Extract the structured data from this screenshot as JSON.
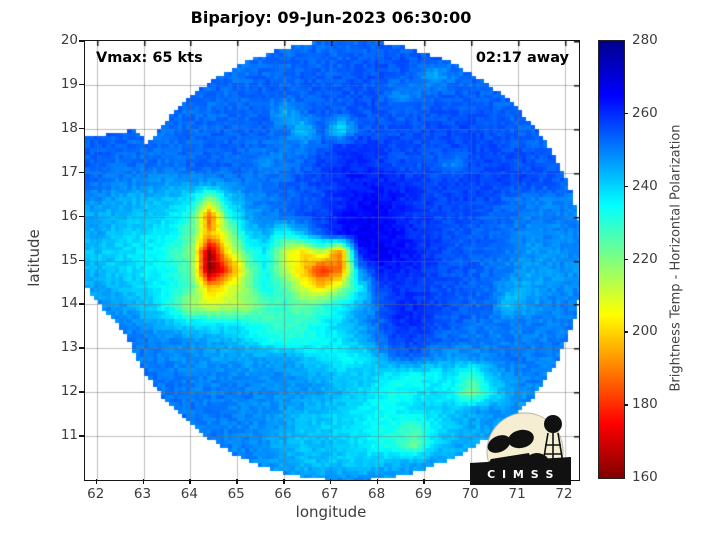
{
  "title": "Biparjoy: 09-Jun-2023 06:30:00",
  "annotations": {
    "vmax": "Vmax: 65 kts",
    "eta": "02:17 away"
  },
  "axes": {
    "xlabel": "longitude",
    "ylabel": "latitude",
    "x_ticks": [
      62,
      63,
      64,
      65,
      66,
      67,
      68,
      69,
      70,
      71,
      72
    ],
    "y_ticks": [
      20,
      19,
      18,
      17,
      16,
      15,
      14,
      13,
      12,
      11
    ]
  },
  "colorbar": {
    "label": "Brightness Temp - Horizontal Polarization",
    "ticks": [
      280,
      260,
      240,
      220,
      200,
      180,
      160
    ],
    "min": 160,
    "max": 280,
    "colormap": "jet reversed (280=dark blue, 160=dark red)",
    "stops": [
      {
        "v": 280,
        "c": "#00008f"
      },
      {
        "v": 265,
        "c": "#0000ff"
      },
      {
        "v": 235,
        "c": "#00ffff"
      },
      {
        "v": 205,
        "c": "#ffff00"
      },
      {
        "v": 175,
        "c": "#ff0000"
      },
      {
        "v": 160,
        "c": "#800000"
      }
    ]
  },
  "logo": {
    "text": "C I M S S"
  },
  "chart_data": {
    "type": "heatmap",
    "title": "Biparjoy: 09-Jun-2023 06:30:00",
    "xlabel": "longitude",
    "ylabel": "latitude",
    "xlim": [
      61.75,
      72.3
    ],
    "ylim": [
      10.07,
      20.0
    ],
    "grid": true,
    "colorbar_label": "Brightness Temp - Horizontal Polarization",
    "value_range": [
      160,
      280
    ],
    "swath": {
      "circle": {
        "cx": 67.35,
        "cy": 15.0,
        "r": 5.02
      },
      "west_bulge_polygon": [
        [
          61.75,
          17.8
        ],
        [
          61.75,
          14.4
        ],
        [
          62.9,
          12.95
        ],
        [
          63.6,
          12.75
        ],
        [
          64.8,
          13.6
        ],
        [
          63.8,
          16.8
        ],
        [
          62.8,
          18.0
        ]
      ]
    },
    "lons": [
      62,
      62.4,
      62.8,
      63.2,
      63.6,
      64,
      64.4,
      64.8,
      65.2,
      65.6,
      66,
      66.4,
      66.8,
      67.2,
      67.6,
      68,
      68.4,
      68.8,
      69.2,
      69.6,
      70,
      70.4,
      70.8,
      71.2,
      71.6,
      72
    ],
    "lats": [
      20,
      19.6,
      19.2,
      18.8,
      18.4,
      18,
      17.6,
      17.2,
      16.8,
      16.4,
      16,
      15.6,
      15.2,
      14.8,
      14.4,
      14,
      13.6,
      13.2,
      12.8,
      12.4,
      12,
      11.6,
      11.2,
      10.8,
      10.4,
      10
    ],
    "values": [
      [
        253,
        253,
        253,
        253,
        253,
        253,
        253,
        253,
        253,
        253,
        252,
        252,
        252,
        252,
        252,
        253,
        253,
        253,
        253,
        253,
        253,
        253,
        253,
        253,
        253,
        253
      ],
      [
        253,
        253,
        253,
        253,
        253,
        253,
        253,
        252,
        251,
        252,
        252,
        253,
        253,
        253,
        254,
        255,
        255,
        254,
        254,
        253,
        253,
        253,
        253,
        253,
        253,
        253
      ],
      [
        253,
        253,
        253,
        253,
        253,
        252,
        252,
        252,
        252,
        253,
        253,
        253,
        254,
        254,
        255,
        255,
        254,
        253,
        244,
        250,
        253,
        253,
        253,
        253,
        253,
        253
      ],
      [
        253,
        253,
        253,
        253,
        252,
        252,
        252,
        252,
        253,
        253,
        253,
        253,
        254,
        254,
        255,
        255,
        247,
        250,
        254,
        254,
        254,
        253,
        253,
        253,
        253,
        253
      ],
      [
        254,
        254,
        254,
        253,
        252,
        252,
        252,
        252,
        253,
        253,
        244,
        252,
        254,
        254,
        255,
        255,
        254,
        254,
        255,
        255,
        255,
        254,
        253,
        253,
        253,
        253
      ],
      [
        254,
        254,
        253,
        252,
        252,
        252,
        253,
        253,
        253,
        253,
        252,
        240,
        253,
        237,
        254,
        255,
        255,
        255,
        256,
        256,
        256,
        255,
        254,
        253,
        253,
        253
      ],
      [
        254,
        253,
        252,
        252,
        252,
        252,
        253,
        253,
        253,
        252,
        250,
        250,
        254,
        258,
        260,
        258,
        256,
        256,
        256,
        256,
        256,
        256,
        255,
        254,
        253,
        253
      ],
      [
        254,
        252,
        252,
        252,
        252,
        253,
        253,
        253,
        252,
        249,
        250,
        253,
        258,
        260,
        260,
        258,
        256,
        255,
        255,
        248,
        256,
        256,
        256,
        256,
        254,
        253
      ],
      [
        252,
        250,
        249,
        248,
        247,
        248,
        248,
        250,
        251,
        252,
        253,
        255,
        257,
        260,
        262,
        262,
        260,
        258,
        256,
        257,
        257,
        257,
        257,
        256,
        255,
        254
      ],
      [
        248,
        246,
        244,
        243,
        242,
        238,
        218,
        240,
        248,
        250,
        252,
        254,
        256,
        260,
        263,
        264,
        262,
        259,
        257,
        257,
        257,
        256,
        252,
        250,
        250,
        250
      ],
      [
        245,
        244,
        243,
        242,
        238,
        230,
        185,
        230,
        245,
        250,
        252,
        255,
        258,
        262,
        265,
        266,
        262,
        259,
        257,
        256,
        255,
        254,
        252,
        250,
        250,
        250
      ],
      [
        245,
        242,
        240,
        238,
        235,
        225,
        195,
        215,
        238,
        244,
        232,
        242,
        254,
        264,
        266,
        266,
        263,
        260,
        257,
        255,
        254,
        253,
        251,
        249,
        249,
        249
      ],
      [
        242,
        240,
        238,
        236,
        230,
        222,
        162,
        205,
        228,
        238,
        212,
        200,
        215,
        190,
        262,
        267,
        264,
        261,
        258,
        255,
        254,
        252,
        250,
        247,
        248,
        248
      ],
      [
        243,
        241,
        239,
        236,
        232,
        225,
        158,
        182,
        218,
        236,
        215,
        198,
        178,
        188,
        248,
        262,
        262,
        260,
        257,
        255,
        254,
        252,
        250,
        246,
        247,
        248
      ],
      [
        246,
        244,
        241,
        238,
        234,
        228,
        195,
        208,
        220,
        235,
        226,
        210,
        200,
        215,
        235,
        255,
        259,
        258,
        256,
        255,
        254,
        252,
        246,
        244,
        248,
        248
      ],
      [
        248,
        247,
        244,
        240,
        230,
        215,
        210,
        212,
        216,
        225,
        230,
        222,
        228,
        235,
        244,
        252,
        260,
        260,
        257,
        255,
        253,
        252,
        240,
        246,
        248,
        250
      ],
      [
        250,
        248,
        248,
        245,
        242,
        238,
        236,
        237,
        233,
        230,
        228,
        230,
        235,
        240,
        246,
        252,
        260,
        260,
        256,
        254,
        252,
        251,
        250,
        250,
        250,
        250
      ],
      [
        252,
        251,
        251,
        250,
        249,
        248,
        246,
        244,
        240,
        234,
        230,
        232,
        234,
        238,
        244,
        250,
        257,
        257,
        254,
        252,
        251,
        250,
        250,
        250,
        250,
        250
      ],
      [
        252,
        252,
        251,
        250,
        249,
        248,
        247,
        246,
        246,
        246,
        246,
        243,
        238,
        234,
        236,
        244,
        252,
        254,
        248,
        246,
        248,
        250,
        251,
        250,
        250,
        250
      ],
      [
        252,
        252,
        252,
        251,
        250,
        250,
        249,
        249,
        248,
        248,
        248,
        246,
        244,
        242,
        242,
        240,
        236,
        234,
        236,
        238,
        228,
        242,
        248,
        250,
        250,
        250
      ],
      [
        252,
        252,
        252,
        252,
        251,
        251,
        250,
        250,
        250,
        249,
        248,
        248,
        246,
        244,
        240,
        236,
        233,
        236,
        238,
        234,
        220,
        235,
        245,
        248,
        250,
        250
      ],
      [
        250,
        250,
        250,
        251,
        251,
        251,
        250,
        250,
        249,
        248,
        246,
        244,
        242,
        240,
        238,
        234,
        236,
        238,
        240,
        242,
        246,
        248,
        248,
        248,
        248,
        248
      ],
      [
        250,
        250,
        250,
        250,
        250,
        251,
        250,
        250,
        249,
        248,
        245,
        242,
        241,
        239,
        238,
        234,
        232,
        228,
        236,
        242,
        244,
        246,
        246,
        246,
        246,
        246
      ],
      [
        250,
        250,
        250,
        250,
        250,
        250,
        251,
        250,
        249,
        247,
        244,
        242,
        243,
        241,
        238,
        234,
        230,
        222,
        240,
        244,
        246,
        246,
        246,
        246,
        246,
        246
      ],
      [
        249,
        249,
        249,
        249,
        249,
        249,
        249,
        249,
        250,
        248,
        246,
        243,
        242,
        242,
        240,
        242,
        244,
        246,
        246,
        246,
        246,
        246,
        246,
        246,
        246,
        246
      ],
      [
        248,
        248,
        248,
        248,
        248,
        248,
        248,
        248,
        248,
        248,
        248,
        248,
        248,
        248,
        248,
        248,
        248,
        248,
        248,
        248,
        248,
        248,
        248,
        248,
        248,
        248
      ]
    ]
  }
}
